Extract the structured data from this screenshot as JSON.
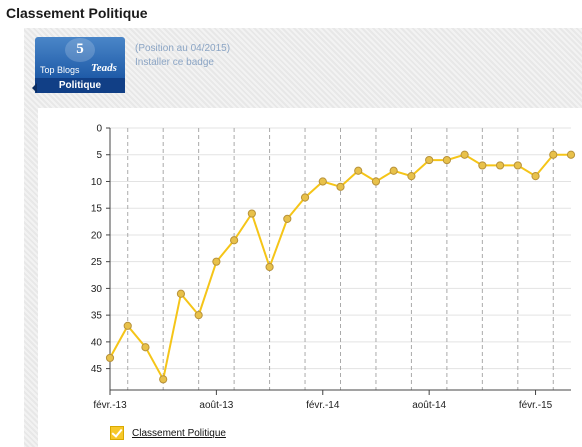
{
  "page": {
    "title": "Classement Politique"
  },
  "badge": {
    "rank": "5",
    "subtitle": "Top Blogs",
    "brand": "Teads",
    "category": "Politique",
    "position_note": "(Position au 04/2015)",
    "install_link": "Installer ce badge"
  },
  "legend": {
    "label": "Classement Politique",
    "checked": true
  },
  "colors": {
    "series_line": "#f5c518",
    "series_marker_fill": "#e8c14a",
    "series_marker_stroke": "#b8923a",
    "badge_blue": "#1f5ba8"
  },
  "chart_data": {
    "type": "line",
    "title": "",
    "xlabel": "",
    "ylabel": "",
    "ylim": [
      0,
      49
    ],
    "y_inverted": true,
    "y_ticks": [
      0,
      5,
      10,
      15,
      20,
      25,
      30,
      35,
      40,
      45
    ],
    "x_tick_labels": [
      {
        "label": "févr.-13",
        "index": 0
      },
      {
        "label": "août-13",
        "index": 6
      },
      {
        "label": "févr.-14",
        "index": 12
      },
      {
        "label": "août-14",
        "index": 18
      },
      {
        "label": "févr.-15",
        "index": 24
      }
    ],
    "grid": {
      "horizontal": true,
      "vertical_dashed": true
    },
    "legend_position": "bottom-left",
    "series": [
      {
        "name": "Classement Politique",
        "x": [
          "2013-02",
          "2013-03",
          "2013-04",
          "2013-05",
          "2013-06",
          "2013-07",
          "2013-08",
          "2013-09",
          "2013-10",
          "2013-11",
          "2013-12",
          "2014-01",
          "2014-02",
          "2014-03",
          "2014-04",
          "2014-05",
          "2014-06",
          "2014-07",
          "2014-08",
          "2014-09",
          "2014-10",
          "2014-11",
          "2014-12",
          "2015-01",
          "2015-02",
          "2015-03",
          "2015-04"
        ],
        "values": [
          43,
          37,
          41,
          47,
          31,
          35,
          25,
          21,
          16,
          26,
          17,
          13,
          10,
          11,
          8,
          10,
          8,
          9,
          6,
          6,
          5,
          7,
          7,
          7,
          9,
          5,
          5
        ]
      }
    ]
  }
}
